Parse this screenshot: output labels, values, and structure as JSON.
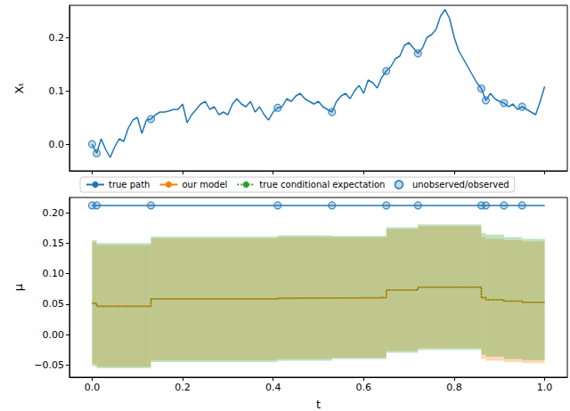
{
  "chart_data": [
    {
      "type": "line",
      "y_label": "Xₜ",
      "grid": false,
      "tick_labels": "y",
      "xlim": [
        -0.05,
        1.05
      ],
      "xticks": [
        {
          "value": 0,
          "label": "0.0"
        },
        0.2,
        0.4,
        0.6,
        0.8,
        {
          "value": 1,
          "label": "1.0"
        }
      ],
      "ylim": [
        -0.05,
        0.26
      ],
      "yticks": [
        {
          "value": 0,
          "label": "0.0"
        },
        0.1,
        0.2
      ],
      "series": [
        {
          "type": "line",
          "color": "#1f77b4",
          "x": [
            0,
            0.01,
            0.02,
            0.03,
            0.04,
            0.05,
            0.06,
            0.07,
            0.08,
            0.09,
            0.1,
            0.11,
            0.12,
            0.13,
            0.14,
            0.15,
            0.16,
            0.17,
            0.18,
            0.19,
            0.2,
            0.21,
            0.22,
            0.23,
            0.24,
            0.25,
            0.26,
            0.27,
            0.28,
            0.29,
            0.3,
            0.31,
            0.32,
            0.33,
            0.34,
            0.35,
            0.36,
            0.37,
            0.38,
            0.39,
            0.4,
            0.41,
            0.42,
            0.43,
            0.44,
            0.45,
            0.46,
            0.47,
            0.48,
            0.49,
            0.5,
            0.51,
            0.52,
            0.53,
            0.54,
            0.55,
            0.56,
            0.57,
            0.58,
            0.59,
            0.6,
            0.61,
            0.62,
            0.63,
            0.64,
            0.65,
            0.66,
            0.67,
            0.68,
            0.69,
            0.7,
            0.71,
            0.72,
            0.73,
            0.74,
            0.75,
            0.76,
            0.77,
            0.78,
            0.79,
            0.8,
            0.81,
            0.82,
            0.83,
            0.84,
            0.85,
            0.86,
            0.87,
            0.88,
            0.89,
            0.9,
            0.91,
            0.92,
            0.93,
            0.94,
            0.95,
            0.96,
            0.97,
            0.98,
            0.99,
            1
          ],
          "values": [
            0,
            -0.017,
            0.01,
            -0.01,
            -0.025,
            -0.005,
            0.01,
            0.005,
            0.03,
            0.045,
            0.05,
            0.02,
            0.045,
            0.047,
            0.055,
            0.06,
            0.06,
            0.062,
            0.065,
            0.065,
            0.075,
            0.04,
            0.055,
            0.065,
            0.075,
            0.08,
            0.065,
            0.07,
            0.055,
            0.06,
            0.055,
            0.075,
            0.085,
            0.075,
            0.07,
            0.08,
            0.06,
            0.07,
            0.055,
            0.045,
            0.06,
            0.068,
            0.07,
            0.085,
            0.08,
            0.09,
            0.095,
            0.085,
            0.08,
            0.075,
            0.08,
            0.07,
            0.065,
            0.06,
            0.08,
            0.09,
            0.095,
            0.085,
            0.1,
            0.11,
            0.095,
            0.12,
            0.115,
            0.105,
            0.125,
            0.137,
            0.145,
            0.16,
            0.165,
            0.185,
            0.19,
            0.18,
            0.17,
            0.18,
            0.2,
            0.205,
            0.215,
            0.24,
            0.252,
            0.235,
            0.2,
            0.175,
            0.16,
            0.145,
            0.13,
            0.115,
            0.104,
            0.082,
            0.095,
            0.085,
            0.08,
            0.077,
            0.07,
            0.075,
            0.065,
            0.07,
            0.065,
            0.06,
            0.055,
            0.08,
            0.108
          ]
        },
        {
          "type": "scatter",
          "marker": "circle",
          "color": "#1f77b4",
          "x": [
            0,
            0.01,
            0.13,
            0.41,
            0.53,
            0.65,
            0.72,
            0.86,
            0.87,
            0.91,
            0.95
          ],
          "values": [
            0,
            -0.017,
            0.047,
            0.068,
            0.06,
            0.137,
            0.17,
            0.104,
            0.082,
            0.077,
            0.07
          ]
        }
      ]
    },
    {
      "type": "line",
      "x_label": "t",
      "y_label": "μ",
      "grid": false,
      "legend": "top",
      "xlim": [
        -0.05,
        1.05
      ],
      "xticks": [
        {
          "value": 0,
          "label": "0.0"
        },
        0.2,
        0.4,
        0.6,
        0.8,
        {
          "value": 1,
          "label": "1.0"
        }
      ],
      "ylim": [
        -0.07,
        0.225
      ],
      "yticks": [
        {
          "value": -0.05,
          "label": "−0.05"
        },
        {
          "value": 0,
          "label": "0.00"
        },
        0.05,
        {
          "value": 0.1,
          "label": "0.10"
        },
        0.15,
        {
          "value": 0.2,
          "label": "0.20"
        }
      ],
      "series": [
        {
          "name": "true path",
          "type": "line",
          "line_style": "solid",
          "color": "#1f77b4",
          "x": [
            0,
            1
          ],
          "values": [
            0.212,
            0.212
          ]
        },
        {
          "name": "our model",
          "type": "step",
          "line_style": "solid",
          "color": "#ff7f0e",
          "x": [
            0,
            0.01,
            0.13,
            0.41,
            0.53,
            0.65,
            0.72,
            0.86,
            0.87,
            0.91,
            0.95,
            1
          ],
          "values": [
            0.052,
            0.047,
            0.058,
            0.06,
            0.06,
            0.073,
            0.078,
            0.06,
            0.057,
            0.055,
            0.053,
            0.053
          ],
          "lower": [
            -0.048,
            -0.053,
            -0.042,
            -0.04,
            -0.038,
            -0.027,
            -0.022,
            -0.04,
            -0.043,
            -0.045,
            -0.047,
            -0.047
          ],
          "upper": [
            0.152,
            0.147,
            0.158,
            0.16,
            0.16,
            0.173,
            0.178,
            0.16,
            0.157,
            0.155,
            0.153,
            0.153
          ]
        },
        {
          "name": "true conditional expectation",
          "type": "step",
          "line_style": "dotted",
          "color": "#2ca02c",
          "x": [
            0,
            0.01,
            0.13,
            0.41,
            0.53,
            0.65,
            0.72,
            0.86,
            0.87,
            0.91,
            0.95,
            1
          ],
          "values": [
            0.051,
            0.046,
            0.059,
            0.06,
            0.061,
            0.073,
            0.078,
            0.061,
            0.057,
            0.055,
            0.053,
            0.053
          ],
          "lower": [
            -0.052,
            -0.055,
            -0.045,
            -0.043,
            -0.04,
            -0.03,
            -0.025,
            -0.033,
            -0.036,
            -0.04,
            -0.042,
            -0.042
          ],
          "upper": [
            0.155,
            0.15,
            0.161,
            0.163,
            0.162,
            0.176,
            0.181,
            0.167,
            0.164,
            0.16,
            0.157,
            0.157
          ]
        },
        {
          "name": "unobserved/observed",
          "type": "scatter",
          "marker": "circle",
          "color": "#1f77b4",
          "x": [
            0,
            0.01,
            0.13,
            0.41,
            0.53,
            0.65,
            0.72,
            0.86,
            0.87,
            0.91,
            0.95
          ],
          "values": [
            0.212,
            0.212,
            0.212,
            0.212,
            0.212,
            0.212,
            0.212,
            0.212,
            0.212,
            0.212,
            0.212
          ]
        }
      ]
    }
  ]
}
